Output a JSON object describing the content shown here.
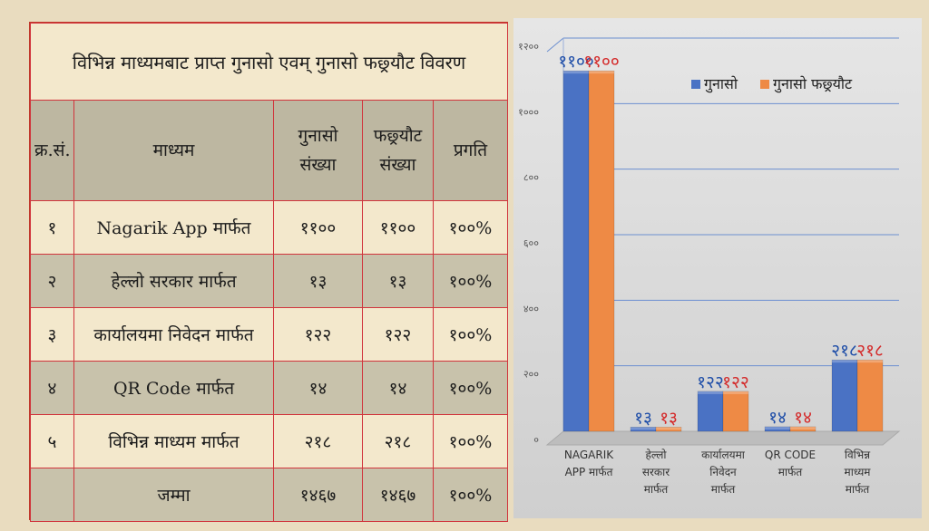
{
  "table": {
    "title": "विभिन्न माध्यमबाट प्राप्त गुनासो एवम् गुनासो फछ्र्यौट विवरण",
    "headers": {
      "sn": "क्र.सं.",
      "source": "माध्यम",
      "complaints_line1": "गुनासो",
      "complaints_line2": "संख्या",
      "resolved_line1": "फछ्र्यौट",
      "resolved_line2": "संख्या",
      "progress": "प्रगति"
    },
    "rows": [
      {
        "sn": "१",
        "source": "Nagarik App मार्फत",
        "complaints": "११००",
        "resolved": "११००",
        "progress": "१००%"
      },
      {
        "sn": "२",
        "source": "हेल्लो सरकार मार्फत",
        "complaints": "१३",
        "resolved": "१३",
        "progress": "१००%"
      },
      {
        "sn": "३",
        "source": "कार्यालयमा निवेदन मार्फत",
        "complaints": "१२२",
        "resolved": "१२२",
        "progress": "१००%"
      },
      {
        "sn": "४",
        "source": "QR Code मार्फत",
        "complaints": "१४",
        "resolved": "१४",
        "progress": "१००%"
      },
      {
        "sn": "५",
        "source": "विभिन्न माध्यम मार्फत",
        "complaints": "२१८",
        "resolved": "२१८",
        "progress": "१००%"
      }
    ],
    "total": {
      "label": "जम्मा",
      "complaints": "१४६७",
      "resolved": "१४६७",
      "progress": "१००%"
    }
  },
  "chart_data": {
    "type": "bar",
    "categories": [
      [
        "NAGARIK",
        "APP मार्फत"
      ],
      [
        "हेल्लो",
        "सरकार",
        "मार्फत"
      ],
      [
        "कार्यालयमा",
        "निवेदन",
        "मार्फत"
      ],
      [
        "QR CODE",
        "मार्फत"
      ],
      [
        "विभिन्न",
        "माध्यम",
        "मार्फत"
      ]
    ],
    "series": [
      {
        "name": "गुनासो",
        "values": [
          1100,
          13,
          122,
          14,
          218
        ],
        "labels": [
          "११००",
          "१३",
          "१२२",
          "१४",
          "२१८"
        ],
        "color": "#4a72c4",
        "label_color": "#1f4ea8"
      },
      {
        "name": "गुनासो फछ्र्यौट",
        "values": [
          1100,
          13,
          122,
          14,
          218
        ],
        "labels": [
          "११००",
          "१३",
          "१२२",
          "१४",
          "२१८"
        ],
        "color": "#ee8a45",
        "label_color": "#d42a2a"
      }
    ],
    "ylim": [
      0,
      1200
    ],
    "yticks": [
      0,
      200,
      400,
      600,
      800,
      1000,
      1200
    ],
    "ytick_labels": [
      "०",
      "२००",
      "४००",
      "६००",
      "८००",
      "१०००",
      "१२००"
    ],
    "grid": true,
    "legend_position": "top-right"
  }
}
